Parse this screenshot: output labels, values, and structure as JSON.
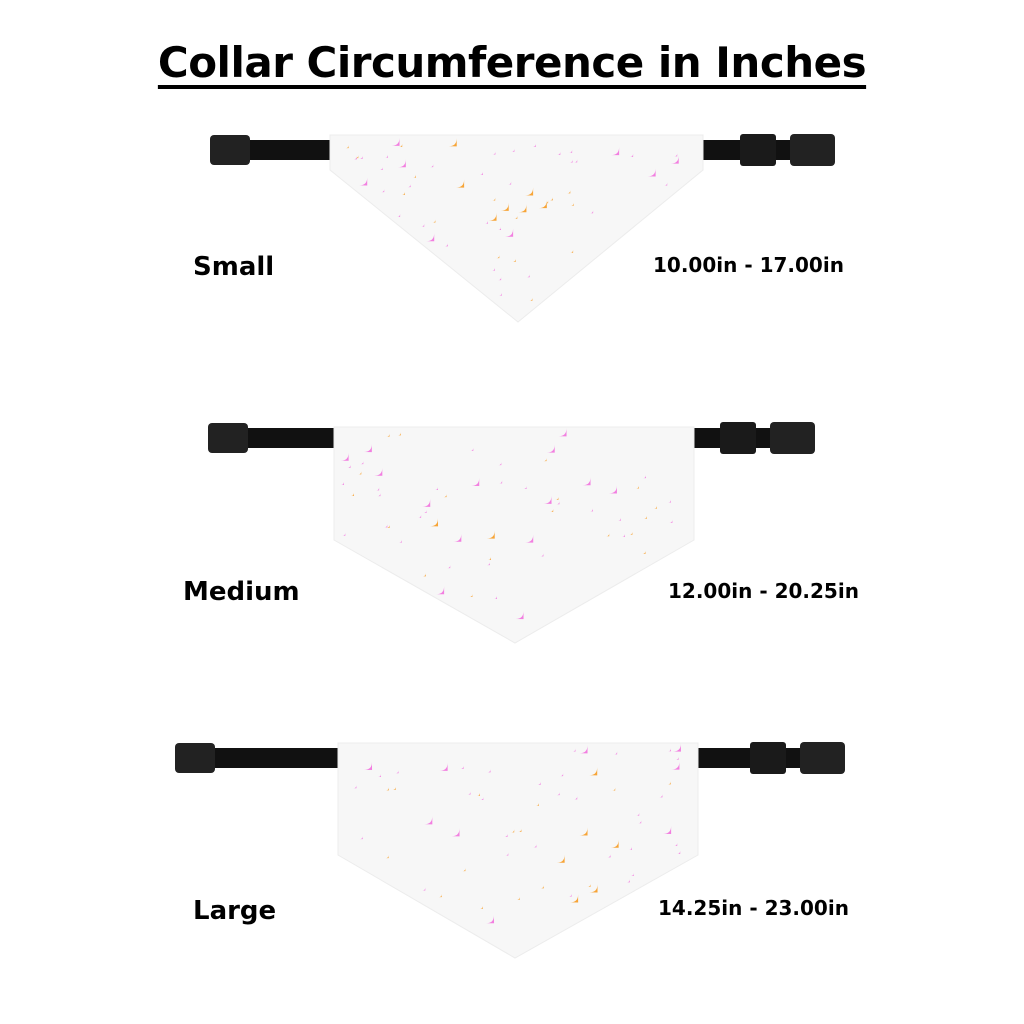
{
  "title": "Collar Circumference in Inches",
  "sizes": [
    {
      "name": "Small",
      "range": "10.00in - 17.00in"
    },
    {
      "name": "Medium",
      "range": "12.00in - 20.25in"
    },
    {
      "name": "Large",
      "range": "14.25in - 23.00in"
    }
  ],
  "colors": {
    "strap": "#111111",
    "bandana": "#f7f7f7",
    "star_pink": "#f27fe0",
    "star_orange": "#f7a436"
  }
}
